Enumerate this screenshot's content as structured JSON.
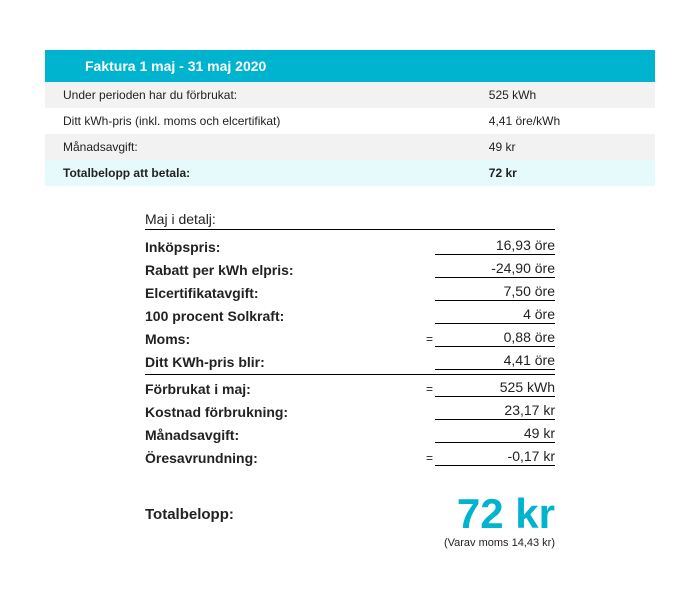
{
  "colors": {
    "accent": "#00b4d0",
    "header_text": "#ffffff",
    "row_light": "#f2f2f2",
    "row_total": "#e6f9fb",
    "text": "#222222",
    "line": "#000000",
    "background": "#ffffff"
  },
  "summary": {
    "header": "Faktura 1 maj - 31 maj 2020",
    "rows": [
      {
        "label": "Under perioden har du förbrukat:",
        "value": "525 kWh"
      },
      {
        "label": "Ditt kWh-pris (inkl. moms och elcertifikat)",
        "value": "4,41 öre/kWh"
      },
      {
        "label": "Månadsavgift:",
        "value": "49 kr"
      }
    ],
    "total": {
      "label": "Totalbelopp att betala:",
      "value": "72 kr"
    }
  },
  "detail": {
    "title": "Maj i detalj:",
    "lines": [
      {
        "label": "Inköpspris:",
        "value": "16,93 öre",
        "eq": false,
        "divider": false
      },
      {
        "label": "Rabatt per kWh elpris:",
        "value": "-24,90 öre",
        "eq": false,
        "divider": false
      },
      {
        "label": "Elcertifikatavgift:",
        "value": "7,50 öre",
        "eq": false,
        "divider": false
      },
      {
        "label": "100 procent Solkraft:",
        "value": "4 öre",
        "eq": false,
        "divider": false
      },
      {
        "label": "Moms:",
        "value": "0,88 öre",
        "eq": true,
        "divider": false
      },
      {
        "label": "Ditt KWh-pris blir:",
        "value": "4,41 öre",
        "eq": false,
        "divider": false
      },
      {
        "label": "Förbrukat i maj:",
        "value": "525 kWh",
        "eq": true,
        "divider": true
      },
      {
        "label": "Kostnad förbrukning:",
        "value": "23,17 kr",
        "eq": false,
        "divider": false
      },
      {
        "label": "Månadsavgift:",
        "value": "49 kr",
        "eq": false,
        "divider": false
      },
      {
        "label": "Öresavrundning:",
        "value": "-0,17 kr",
        "eq": true,
        "divider": false
      }
    ],
    "total_label": "Totalbelopp:",
    "total_value": "72 kr",
    "vat_note": "(Varav moms 14,43 kr)"
  }
}
